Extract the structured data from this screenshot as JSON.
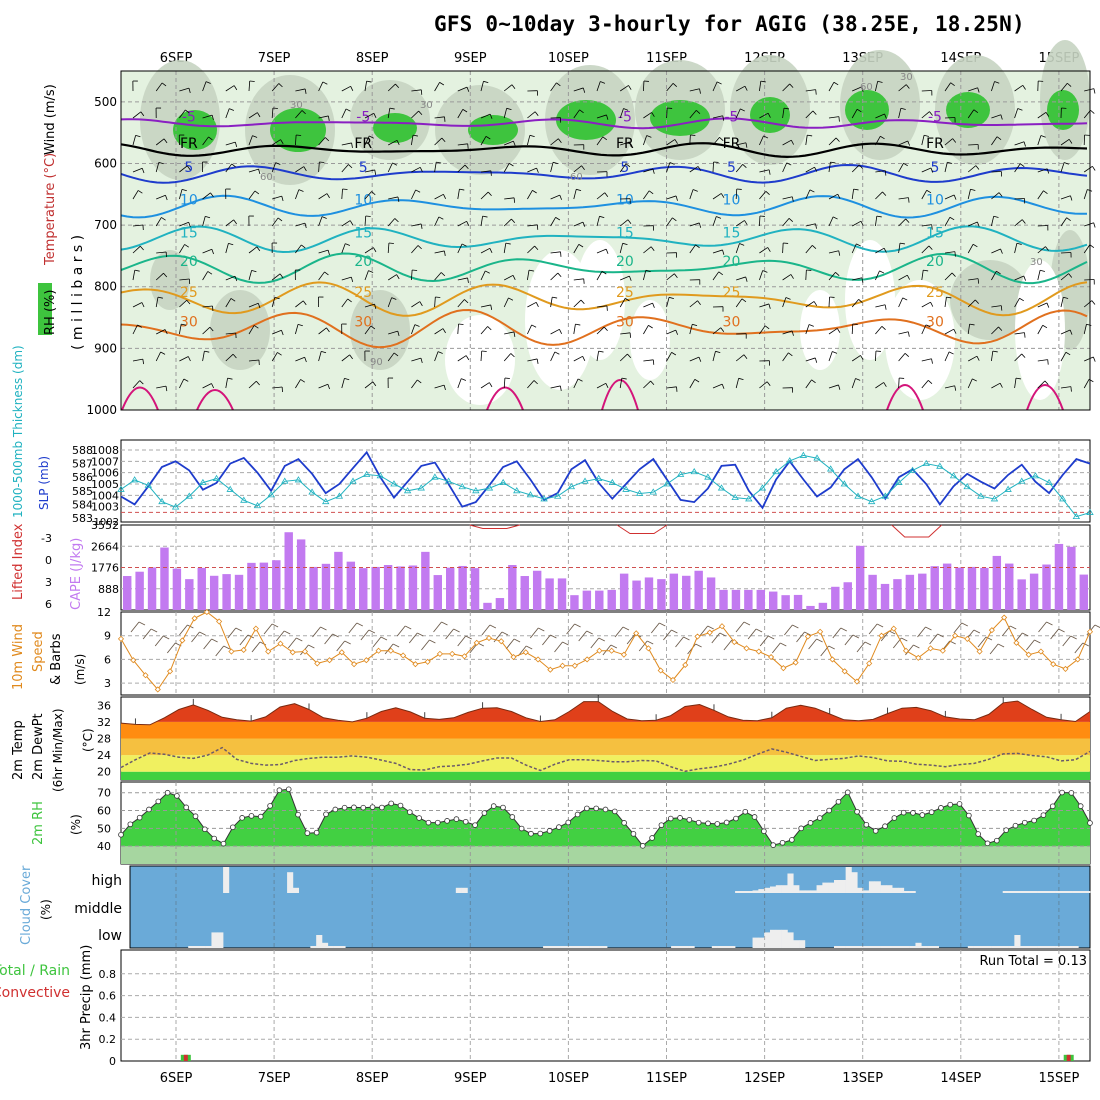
{
  "header": {
    "title": "GFS 0~10day 3-hourly for AGIG (38.25E, 18.25N)"
  },
  "dates": [
    "6SEP",
    "7SEP",
    "8SEP",
    "9SEP",
    "10SEP",
    "11SEP",
    "12SEP",
    "13SEP",
    "14SEP",
    "15SEP"
  ],
  "colors": {
    "rh": "#3ec43e",
    "temp_line": "#8a1fc2",
    "slp": "#1e3ccc",
    "thick": "#20b2c0",
    "cape": "#c27af0",
    "li": "#d03030",
    "wind": "#e08a1e",
    "cloud": "#6aaad8",
    "precip_total": "#3ec43e",
    "precip_conv": "#d03030"
  },
  "chart_data": [
    {
      "type": "contour",
      "name": "upper-air",
      "ylabel_parts": [
        "Wind (m/s)",
        "Temperature (°C)",
        "RH (%)"
      ],
      "ylabel": "( m i l l i b a r s )",
      "yticks": [
        500,
        600,
        700,
        800,
        900,
        1000
      ],
      "ylim": [
        450,
        1000
      ],
      "isotherms": [
        {
          "label": "-5",
          "level": 535
        },
        {
          "label": "FR",
          "level": 578
        },
        {
          "label": "5",
          "level": 617
        },
        {
          "label": "10",
          "level": 670
        },
        {
          "label": "15",
          "level": 723
        },
        {
          "label": "20",
          "level": 770
        },
        {
          "label": "25",
          "level": 820
        },
        {
          "label": "30",
          "level": 868
        }
      ],
      "rh_labels": [
        "30",
        "60",
        "90"
      ]
    },
    {
      "type": "line",
      "name": "slp-thickness",
      "ylabel_left": "1000-500mb Thickness (dm)",
      "ylabel_right": "SLP (mb)",
      "yticks_left": [
        583,
        584,
        585,
        586,
        587,
        588
      ],
      "yticks_right": [
        1003,
        1004,
        1005,
        1006,
        1007,
        1008
      ],
      "y_bottom_label": "1002",
      "slp": [
        1003.9,
        1003.2,
        1004.8,
        1006.5,
        1007.0,
        1006.2,
        1004.5,
        1005.1,
        1006.8,
        1007.3,
        1006.0,
        1004.4,
        1006.6,
        1007.2,
        1005.9,
        1004.2,
        1005.0,
        1006.4,
        1007.8,
        1005.6,
        1003.8,
        1005.2,
        1006.6,
        1006.9,
        1005.0,
        1003.0,
        1003.4,
        1004.9,
        1006.5,
        1007.0,
        1005.4,
        1003.6,
        1004.2,
        1006.3,
        1007.1,
        1005.1,
        1003.7,
        1005.0,
        1006.3,
        1007.2,
        1005.4,
        1003.6,
        1003.4,
        1004.6,
        1006.6,
        1006.7,
        1004.4,
        1002.9,
        1005.4,
        1007.0,
        1005.4,
        1003.9,
        1004.7,
        1006.3,
        1007.2,
        1005.6,
        1003.7,
        1005.6,
        1006.3,
        1005.0,
        1003.2,
        1004.8,
        1005.9,
        1005.2,
        1004.6,
        1005.8,
        1006.7,
        1005.2,
        1004.2,
        1005.8,
        1007.2,
        1006.8
      ],
      "thickness": [
        585.1,
        585.8,
        585.4,
        584.2,
        583.8,
        584.6,
        585.6,
        585.9,
        585.1,
        584.3,
        583.9,
        584.7,
        585.7,
        585.8,
        584.9,
        584.2,
        584.6,
        585.7,
        586.2,
        586.1,
        585.5,
        585.0,
        585.2,
        586.0,
        585.7,
        585.3,
        585.0,
        585.2,
        585.6,
        585.0,
        584.7,
        584.4,
        584.6,
        585.3,
        585.7,
        585.9,
        585.6,
        585.1,
        584.8,
        584.9,
        585.5,
        586.2,
        586.4,
        586.0,
        585.2,
        584.5,
        584.4,
        585.2,
        586.4,
        587.2,
        587.6,
        587.4,
        586.6,
        585.5,
        584.6,
        584.2,
        584.6,
        585.6,
        586.5,
        587.0,
        586.8,
        586.1,
        585.3,
        584.6,
        584.4,
        585.1,
        585.7,
        586.1,
        585.6,
        584.4,
        583.1,
        583.4
      ]
    },
    {
      "type": "bar",
      "name": "cape-li",
      "ylabel_left": "Lifted Index",
      "ylabel_right": "CAPE (J/kg)",
      "yticks_left": [
        "-3",
        "0",
        "3",
        "6"
      ],
      "yticks_right": [
        "888",
        "1776",
        "2664",
        "3552"
      ],
      "cape": [
        1420,
        1600,
        1780,
        2610,
        1730,
        1290,
        1760,
        1430,
        1500,
        1470,
        1970,
        1980,
        2080,
        3250,
        2950,
        1800,
        1930,
        2430,
        2020,
        1750,
        1800,
        1880,
        1820,
        1860,
        2430,
        1460,
        1770,
        1840,
        1750,
        300,
        500,
        1880,
        1420,
        1640,
        1320,
        1320,
        620,
        810,
        810,
        840,
        1520,
        1230,
        1360,
        1290,
        1520,
        1430,
        1640,
        1360,
        840,
        840,
        840,
        840,
        770,
        620,
        630,
        170,
        300,
        970,
        1160,
        2680,
        1470,
        1090,
        1290,
        1470,
        1520,
        1830,
        1940,
        1770,
        1800,
        1760,
        2260,
        1940,
        1280,
        1520,
        1900,
        2760,
        2640,
        1480
      ],
      "li_dips": [
        {
          "x": 3.25,
          "v": -5.5
        },
        {
          "x": 4.75,
          "v": -4.8
        },
        {
          "x": 7.55,
          "v": -4.3
        }
      ]
    },
    {
      "type": "line",
      "name": "wind10m",
      "ylabel": "10m Wind Speed & Barbs",
      "units": "(m/s)",
      "yticks": [
        3,
        6,
        9,
        12
      ],
      "ylim": [
        1.5,
        12
      ],
      "values": [
        8.6,
        5.9,
        4.0,
        2.2,
        4.5,
        8.4,
        11.2,
        12.0,
        10.8,
        7.0,
        7.2,
        9.9,
        7.0,
        8.0,
        6.9,
        7.0,
        5.5,
        5.9,
        6.9,
        5.4,
        5.9,
        7.1,
        7.1,
        6.5,
        5.4,
        5.7,
        6.7,
        6.7,
        6.4,
        8.1,
        8.7,
        8.3,
        6.3,
        6.9,
        6.0,
        4.7,
        5.2,
        5.2,
        6.0,
        7.1,
        7.1,
        6.6,
        9.3,
        7.4,
        4.6,
        3.4,
        5.3,
        8.9,
        9.4,
        10.2,
        8.2,
        7.4,
        7.0,
        6.3,
        4.9,
        5.6,
        8.9,
        9.5,
        6.0,
        4.5,
        3.2,
        5.5,
        9.0,
        9.9,
        7.1,
        6.2,
        7.4,
        7.1,
        9.0,
        8.6,
        7.0,
        9.7,
        11.3,
        8.1,
        6.6,
        7.0,
        5.4,
        4.8,
        6.0,
        9.5
      ]
    },
    {
      "type": "area",
      "name": "temp-dewpoint",
      "ylabel": [
        "2m Temp",
        "2m DewPt",
        "(6hr Min/Max)"
      ],
      "units": "(°C)",
      "yticks": [
        20,
        24,
        28,
        32,
        36
      ],
      "ylim": [
        18,
        38
      ],
      "temp": [
        31.7,
        31.4,
        31.3,
        33.0,
        35.0,
        36.1,
        34.8,
        33.1,
        32.5,
        32.2,
        33.2,
        35.6,
        36.4,
        35.0,
        33.0,
        32.4,
        32.0,
        32.9,
        34.5,
        35.4,
        34.4,
        32.9,
        32.6,
        33.0,
        34.3,
        35.3,
        35.4,
        34.5,
        33.0,
        32.1,
        32.5,
        34.5,
        36.9,
        36.9,
        34.5,
        32.7,
        32.3,
        32.4,
        33.5,
        35.7,
        36.2,
        34.8,
        33.2,
        32.4,
        32.3,
        33.0,
        35.3,
        36.0,
        35.3,
        33.9,
        32.5,
        32.3,
        32.6,
        34.0,
        35.3,
        35.5,
        34.7,
        33.2,
        32.7,
        32.5,
        33.8,
        36.6,
        37.0,
        35.0,
        33.1,
        32.5,
        32.1,
        34.5
      ],
      "dewpoint": [
        21.0,
        22.9,
        24.5,
        24.2,
        23.5,
        23.2,
        24.0,
        25.8,
        23.0,
        22.0,
        21.6,
        21.7,
        22.7,
        23.2,
        23.5,
        23.5,
        23.8,
        23.5,
        22.8,
        22.0,
        20.5,
        20.4,
        21.2,
        21.4,
        21.8,
        22.6,
        23.3,
        23.3,
        21.6,
        20.3,
        21.8,
        22.9,
        22.9,
        22.7,
        22.4,
        22.4,
        22.7,
        22.6,
        21.2,
        20.1,
        20.7,
        21.1,
        21.8,
        22.8,
        24.2,
        25.5,
        24.7,
        23.7,
        22.7,
        23.0,
        23.2,
        23.8,
        23.4,
        22.6,
        22.5,
        21.8,
        21.6,
        21.2,
        21.7,
        22.0,
        23.0,
        24.3,
        24.4,
        23.9,
        23.6,
        22.6,
        22.9,
        24.9
      ]
    },
    {
      "type": "area",
      "name": "rh2m",
      "ylabel": "2m RH",
      "units": "(%)",
      "yticks": [
        40,
        50,
        60,
        70
      ],
      "ylim": [
        30,
        76
      ],
      "values": [
        46.4,
        52.3,
        56.0,
        60.6,
        65.1,
        70.0,
        68.2,
        61.8,
        56.8,
        49.5,
        44.3,
        41.4,
        50.6,
        55.9,
        57.0,
        56.6,
        62.6,
        71.4,
        71.9,
        57.7,
        47.3,
        47.6,
        57.9,
        60.6,
        61.6,
        61.8,
        61.6,
        61.9,
        61.7,
        64.0,
        62.8,
        59.1,
        55.8,
        53.2,
        53.2,
        54.2,
        55.2,
        53.7,
        51.8,
        58.6,
        62.5,
        61.7,
        56.4,
        49.9,
        47.0,
        47.1,
        48.6,
        50.7,
        53.3,
        57.8,
        61.2,
        61.2,
        60.6,
        59.5,
        53.1,
        46.9,
        40.2,
        44.6,
        51.8,
        55.5,
        55.9,
        54.8,
        53.2,
        52.8,
        52.5,
        53.3,
        55.5,
        59.3,
        56.4,
        48.4,
        40.6,
        41.9,
        43.5,
        50.0,
        53.1,
        55.8,
        60.0,
        64.9,
        70.2,
        59.3,
        52.0,
        48.6,
        51.2,
        55.8,
        58.8,
        58.7,
        57.5,
        59.1,
        61.5,
        63.3,
        63.7,
        57.2,
        46.8,
        41.6,
        43.1,
        49.0,
        51.5,
        53.2,
        54.4,
        57.4,
        62.4,
        70.1,
        69.9,
        62.5,
        53.0
      ]
    },
    {
      "type": "heatmap",
      "name": "cloud-cover",
      "ylabel": "Cloud Cover",
      "units": "(%)",
      "levels": [
        "high",
        "middle",
        "low"
      ],
      "high": [
        0,
        0,
        0,
        0,
        0,
        0,
        0,
        0,
        0,
        0,
        0,
        0,
        0,
        0,
        0,
        0,
        100,
        0,
        0,
        0,
        0,
        0,
        0,
        0,
        0,
        0,
        0,
        80,
        20,
        0,
        0,
        0,
        0,
        0,
        0,
        0,
        0,
        0,
        0,
        0,
        0,
        0,
        0,
        0,
        0,
        0,
        0,
        0,
        0,
        0,
        0,
        0,
        0,
        0,
        0,
        0,
        20,
        20,
        0,
        0,
        0,
        0,
        0,
        0,
        0,
        0,
        0,
        0,
        0,
        0,
        0,
        0,
        0,
        0,
        0,
        0,
        0,
        0,
        0,
        0,
        0,
        0,
        0,
        0,
        0,
        0,
        0,
        0,
        0,
        0,
        0,
        0,
        0,
        0,
        0,
        0,
        0,
        0,
        0,
        0,
        0,
        0,
        0,
        0,
        5,
        5,
        5,
        10,
        15,
        20,
        25,
        30,
        30,
        75,
        30,
        10,
        10,
        10,
        30,
        40,
        40,
        50,
        50,
        100,
        80,
        20,
        10,
        45,
        45,
        30,
        30,
        20,
        20,
        5,
        5,
        0,
        0,
        0,
        0,
        0,
        0,
        0,
        0,
        0,
        0,
        0,
        0,
        0,
        0,
        0,
        5,
        5,
        5,
        5,
        5,
        5,
        5,
        5,
        5,
        5,
        5,
        5,
        5,
        5,
        5
      ],
      "middle": [
        0,
        0,
        0,
        0,
        0,
        0,
        0,
        0,
        0,
        0,
        0,
        0,
        0,
        0,
        0,
        0,
        0,
        0,
        0,
        0,
        0,
        0,
        0,
        0,
        0,
        0,
        0,
        0,
        0,
        0,
        0,
        0,
        0,
        0,
        0,
        0,
        0,
        0,
        0,
        0,
        0,
        0,
        0,
        0,
        0,
        0,
        0,
        0,
        0,
        0,
        0,
        0,
        0,
        0,
        0,
        0,
        0,
        0,
        0,
        0,
        0,
        0,
        0,
        0,
        0,
        0,
        0,
        0,
        0,
        0,
        0,
        0,
        0,
        0,
        0,
        0,
        0,
        0,
        0,
        0,
        0,
        0,
        0,
        0,
        0,
        0,
        0,
        0,
        0,
        0,
        0,
        0,
        0,
        0,
        0,
        0,
        0,
        0,
        0,
        0,
        0,
        0,
        0,
        0,
        0,
        0,
        0,
        0,
        0,
        0,
        0,
        0,
        0,
        0,
        0,
        0,
        0,
        0,
        0,
        0,
        0,
        0,
        0,
        0,
        0,
        0,
        0,
        0,
        0,
        0,
        0,
        0,
        0,
        0,
        0,
        0,
        0,
        0,
        0,
        0,
        0,
        0,
        0,
        0,
        0,
        0,
        0,
        0,
        0,
        0,
        0,
        0,
        0,
        0,
        0,
        0,
        0,
        0,
        0,
        0,
        0,
        0,
        0,
        0,
        0
      ],
      "low": [
        0,
        0,
        0,
        0,
        0,
        0,
        0,
        0,
        0,
        0,
        5,
        5,
        5,
        5,
        60,
        60,
        0,
        0,
        0,
        0,
        0,
        0,
        0,
        0,
        0,
        0,
        0,
        0,
        0,
        0,
        0,
        5,
        50,
        20,
        5,
        5,
        5,
        0,
        0,
        0,
        0,
        0,
        0,
        0,
        0,
        0,
        0,
        0,
        0,
        0,
        0,
        0,
        0,
        0,
        0,
        0,
        0,
        0,
        0,
        0,
        0,
        0,
        0,
        0,
        0,
        0,
        0,
        0,
        0,
        0,
        0,
        5,
        5,
        5,
        5,
        5,
        5,
        5,
        5,
        5,
        5,
        5,
        0,
        0,
        0,
        0,
        0,
        0,
        0,
        0,
        0,
        0,
        0,
        5,
        5,
        5,
        5,
        0,
        0,
        0,
        5,
        5,
        5,
        5,
        0,
        0,
        0,
        40,
        40,
        60,
        70,
        70,
        70,
        60,
        30,
        30,
        0,
        0,
        0,
        0,
        0,
        5,
        5,
        5,
        5,
        5,
        5,
        5,
        5,
        5,
        5,
        5,
        5,
        5,
        5,
        20,
        5,
        5,
        5,
        0,
        0,
        0,
        0,
        0,
        5,
        5,
        5,
        5,
        5,
        5,
        5,
        5,
        50,
        5,
        5,
        5,
        5,
        5,
        5,
        5,
        5,
        5,
        5,
        0,
        0,
        0,
        0,
        5,
        5,
        5,
        5,
        5,
        5,
        5,
        5,
        5,
        5,
        5,
        5,
        5,
        5,
        5,
        80,
        20,
        20
      ]
    },
    {
      "type": "bar",
      "name": "precip",
      "ylabel_left": [
        "Total / Rain",
        "Convective"
      ],
      "ylabel": "3hr Precip (mm)",
      "yticks": [
        "0",
        "0.2",
        "0.4",
        "0.6",
        "0.8"
      ],
      "ylim": [
        0,
        1
      ],
      "annotation": "Run Total = 0.13",
      "bars": [
        {
          "x": 0.1,
          "total": 0.02,
          "conv": 0.02
        },
        {
          "x": 9.1,
          "total": 0.02,
          "conv": 0.02
        }
      ]
    }
  ]
}
